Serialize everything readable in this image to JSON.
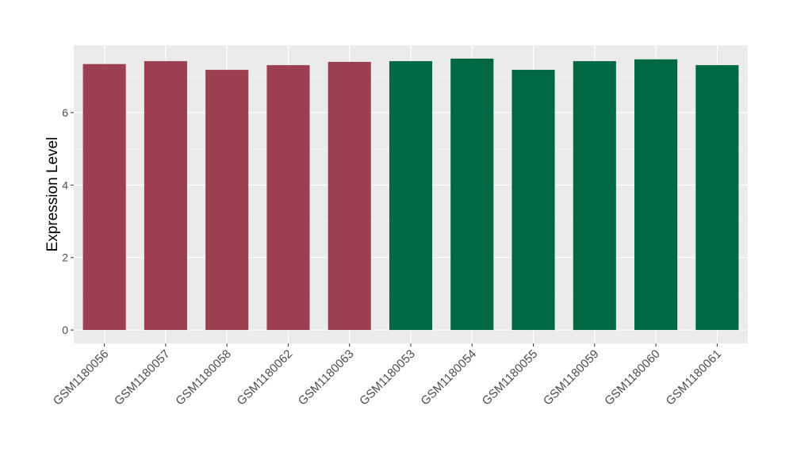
{
  "chart_data": {
    "type": "bar",
    "y_label": "Expression Level",
    "categories": [
      "GSM1180056",
      "GSM1180057",
      "GSM1180058",
      "GSM1180062",
      "GSM1180063",
      "GSM1180053",
      "GSM1180054",
      "GSM1180055",
      "GSM1180059",
      "GSM1180060",
      "GSM1180061"
    ],
    "values": [
      7.34,
      7.42,
      7.18,
      7.31,
      7.4,
      7.42,
      7.49,
      7.18,
      7.42,
      7.47,
      7.31
    ],
    "colors": [
      "#9a4050",
      "#9a4050",
      "#9a4050",
      "#9a4050",
      "#9a4050",
      "#006843",
      "#006843",
      "#006843",
      "#006843",
      "#006843",
      "#006843"
    ],
    "ylim": [
      -0.37,
      7.86
    ],
    "yticks": [
      0,
      2,
      4,
      6
    ],
    "y_minor_grid": [
      1,
      3,
      5,
      7
    ],
    "grid": true
  }
}
